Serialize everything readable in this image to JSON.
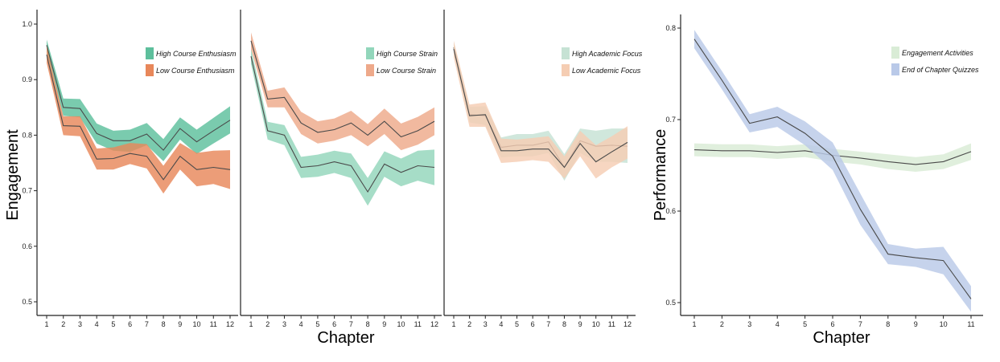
{
  "labels": {
    "left_ylabel": "Engagement",
    "left_xlabel": "Chapter",
    "right_ylabel": "Performance",
    "right_xlabel": "Chapter"
  },
  "chart_data": [
    {
      "type": "area",
      "panel": "enthusiasm",
      "x": [
        1,
        2,
        3,
        4,
        5,
        6,
        7,
        8,
        9,
        10,
        11,
        12
      ],
      "ylim": [
        0.5,
        1.0
      ],
      "yticks": [
        0.5,
        0.6,
        0.7,
        0.8,
        0.9,
        1.0
      ],
      "yticklabels": [
        "0.5",
        "0.6",
        "0.7",
        "0.8",
        "0.9",
        "1.0"
      ],
      "legend_position": "top-right",
      "series": [
        {
          "name": "High Course Enthusiasm",
          "color": "#5dbf9c",
          "values": [
            0.962,
            0.85,
            0.848,
            0.803,
            0.79,
            0.79,
            0.802,
            0.773,
            0.812,
            0.788,
            0.808,
            0.827
          ],
          "lower": [
            0.95,
            0.835,
            0.832,
            0.785,
            0.772,
            0.77,
            0.782,
            0.753,
            0.792,
            0.766,
            0.785,
            0.803
          ],
          "upper": [
            0.972,
            0.866,
            0.865,
            0.821,
            0.808,
            0.81,
            0.822,
            0.793,
            0.832,
            0.81,
            0.831,
            0.852
          ]
        },
        {
          "name": "Low Course Enthusiasm",
          "color": "#e8875a",
          "values": [
            0.945,
            0.817,
            0.816,
            0.757,
            0.758,
            0.767,
            0.762,
            0.72,
            0.762,
            0.738,
            0.742,
            0.738
          ],
          "lower": [
            0.93,
            0.8,
            0.798,
            0.738,
            0.738,
            0.748,
            0.74,
            0.695,
            0.738,
            0.708,
            0.712,
            0.703
          ],
          "upper": [
            0.96,
            0.834,
            0.834,
            0.776,
            0.778,
            0.786,
            0.784,
            0.745,
            0.786,
            0.768,
            0.772,
            0.773
          ]
        }
      ]
    },
    {
      "type": "area",
      "panel": "strain",
      "x": [
        1,
        2,
        3,
        4,
        5,
        6,
        7,
        8,
        9,
        10,
        11,
        12
      ],
      "ylim": [
        0.5,
        1.0
      ],
      "legend_position": "top-right",
      "series": [
        {
          "name": "High Course Strain",
          "color": "#92d6bb",
          "values": [
            0.942,
            0.808,
            0.8,
            0.742,
            0.745,
            0.752,
            0.745,
            0.698,
            0.748,
            0.733,
            0.745,
            0.742
          ],
          "lower": [
            0.928,
            0.792,
            0.782,
            0.723,
            0.725,
            0.732,
            0.723,
            0.673,
            0.725,
            0.708,
            0.718,
            0.71
          ],
          "upper": [
            0.956,
            0.824,
            0.818,
            0.761,
            0.765,
            0.772,
            0.767,
            0.723,
            0.771,
            0.758,
            0.772,
            0.774
          ]
        },
        {
          "name": "Low Course Strain",
          "color": "#eea98a",
          "values": [
            0.97,
            0.865,
            0.868,
            0.822,
            0.805,
            0.81,
            0.822,
            0.8,
            0.825,
            0.797,
            0.808,
            0.825
          ],
          "lower": [
            0.955,
            0.85,
            0.85,
            0.802,
            0.785,
            0.79,
            0.8,
            0.78,
            0.802,
            0.773,
            0.783,
            0.8
          ],
          "upper": [
            0.985,
            0.88,
            0.886,
            0.842,
            0.825,
            0.83,
            0.844,
            0.82,
            0.848,
            0.821,
            0.833,
            0.85
          ]
        }
      ]
    },
    {
      "type": "area",
      "panel": "focus",
      "x": [
        1,
        2,
        3,
        4,
        5,
        6,
        7,
        8,
        9,
        10,
        11,
        12
      ],
      "ylim": [
        0.5,
        1.0
      ],
      "legend_position": "top-right",
      "series": [
        {
          "name": "High Academic Focus",
          "color": "#c6e2d4",
          "values": [
            0.958,
            0.837,
            0.835,
            0.778,
            0.782,
            0.782,
            0.788,
            0.742,
            0.79,
            0.78,
            0.782,
            0.78
          ],
          "lower": [
            0.948,
            0.823,
            0.818,
            0.76,
            0.762,
            0.762,
            0.768,
            0.718,
            0.768,
            0.752,
            0.752,
            0.75
          ],
          "upper": [
            0.968,
            0.851,
            0.852,
            0.796,
            0.802,
            0.802,
            0.808,
            0.766,
            0.812,
            0.808,
            0.812,
            0.812
          ]
        },
        {
          "name": "Low Academic Focus",
          "color": "#f5cdb3",
          "values": [
            0.955,
            0.835,
            0.837,
            0.772,
            0.772,
            0.775,
            0.775,
            0.742,
            0.785,
            0.752,
            0.77,
            0.787
          ],
          "lower": [
            0.94,
            0.815,
            0.815,
            0.75,
            0.752,
            0.755,
            0.752,
            0.722,
            0.762,
            0.722,
            0.742,
            0.758
          ],
          "upper": [
            0.97,
            0.855,
            0.859,
            0.794,
            0.792,
            0.795,
            0.798,
            0.762,
            0.808,
            0.782,
            0.798,
            0.816
          ]
        }
      ]
    },
    {
      "type": "area",
      "panel": "performance",
      "x": [
        1,
        2,
        3,
        4,
        5,
        6,
        7,
        8,
        9,
        10,
        11
      ],
      "ylim": [
        0.5,
        0.8
      ],
      "yticks": [
        0.5,
        0.6,
        0.7,
        0.8
      ],
      "yticklabels": [
        "0.5",
        "0.6",
        "0.7",
        "0.8"
      ],
      "legend_position": "top-right",
      "series": [
        {
          "name": "Engagement Activities",
          "color": "#d9ecd6",
          "values": [
            0.667,
            0.666,
            0.666,
            0.664,
            0.666,
            0.661,
            0.658,
            0.654,
            0.651,
            0.654,
            0.665
          ],
          "lower": [
            0.66,
            0.659,
            0.659,
            0.657,
            0.659,
            0.654,
            0.651,
            0.646,
            0.643,
            0.646,
            0.656
          ],
          "upper": [
            0.674,
            0.673,
            0.673,
            0.671,
            0.673,
            0.668,
            0.665,
            0.662,
            0.659,
            0.662,
            0.674
          ]
        },
        {
          "name": "End of Chapter Quizzes",
          "color": "#b9c9e8",
          "values": [
            0.788,
            0.743,
            0.696,
            0.703,
            0.685,
            0.66,
            0.602,
            0.553,
            0.549,
            0.546,
            0.504
          ],
          "lower": [
            0.778,
            0.733,
            0.686,
            0.692,
            0.672,
            0.645,
            0.585,
            0.542,
            0.539,
            0.531,
            0.49
          ],
          "upper": [
            0.798,
            0.753,
            0.706,
            0.714,
            0.698,
            0.675,
            0.619,
            0.564,
            0.559,
            0.561,
            0.518
          ]
        }
      ]
    }
  ]
}
